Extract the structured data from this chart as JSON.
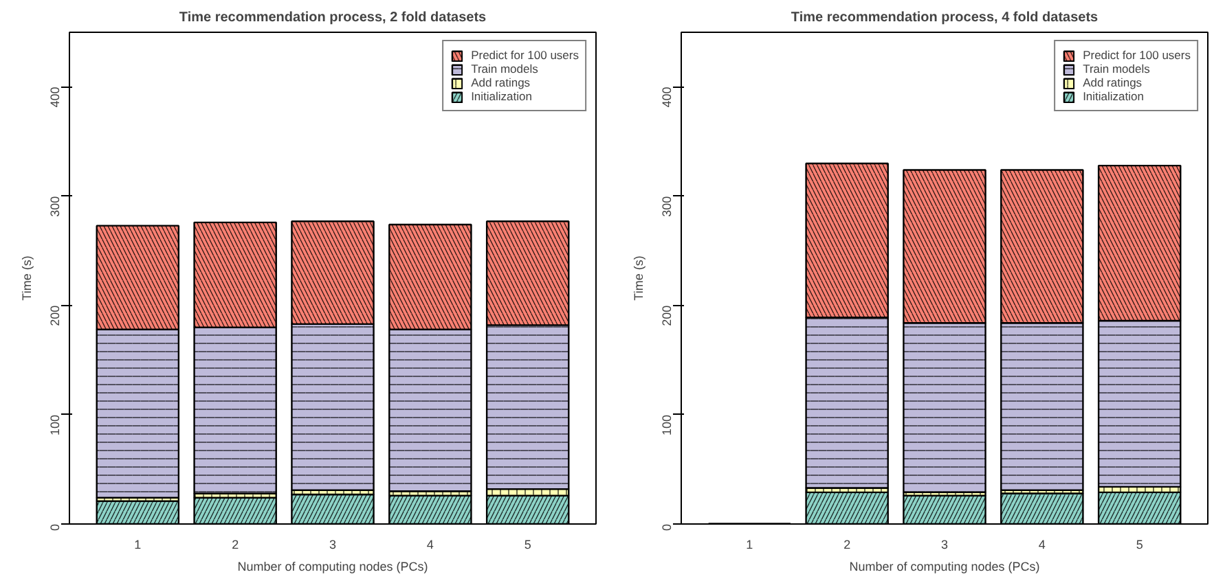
{
  "chart_data": [
    {
      "type": "bar",
      "title": "Time recommendation process, 2 fold datasets",
      "xlabel": "Number of computing nodes (PCs)",
      "ylabel": "Time (s)",
      "categories": [
        "1",
        "2",
        "3",
        "4",
        "5"
      ],
      "stacked": true,
      "ylim": [
        0,
        450
      ],
      "yticks": [
        0,
        100,
        200,
        300,
        400
      ],
      "grid": false,
      "legend": "top right",
      "series": [
        {
          "name": "Initialization",
          "color": "#8dd3c7",
          "values": [
            21,
            24,
            27,
            26,
            26
          ]
        },
        {
          "name": "Add ratings",
          "color": "#ffffb3",
          "values": [
            3,
            4,
            4,
            4,
            6
          ]
        },
        {
          "name": "Train models",
          "color": "#bebada",
          "values": [
            154,
            152,
            152,
            148,
            150
          ]
        },
        {
          "name": "Predict for 100 users",
          "color": "#fb8072",
          "values": [
            95,
            96,
            94,
            96,
            95
          ]
        }
      ]
    },
    {
      "type": "bar",
      "title": "Time recommendation process, 4 fold datasets",
      "xlabel": "Number of computing nodes (PCs)",
      "ylabel": "Time (s)",
      "categories": [
        "1",
        "2",
        "3",
        "4",
        "5"
      ],
      "stacked": true,
      "ylim": [
        0,
        450
      ],
      "yticks": [
        0,
        100,
        200,
        300,
        400
      ],
      "grid": false,
      "legend": "top right",
      "series": [
        {
          "name": "Initialization",
          "color": "#8dd3c7",
          "values": [
            0,
            29,
            26,
            28,
            29
          ]
        },
        {
          "name": "Add ratings",
          "color": "#ffffb3",
          "values": [
            0,
            4,
            3,
            3,
            5
          ]
        },
        {
          "name": "Train models",
          "color": "#bebada",
          "values": [
            0,
            156,
            155,
            153,
            152
          ]
        },
        {
          "name": "Predict for 100 users",
          "color": "#fb8072",
          "values": [
            0,
            141,
            140,
            140,
            142
          ]
        }
      ]
    }
  ]
}
